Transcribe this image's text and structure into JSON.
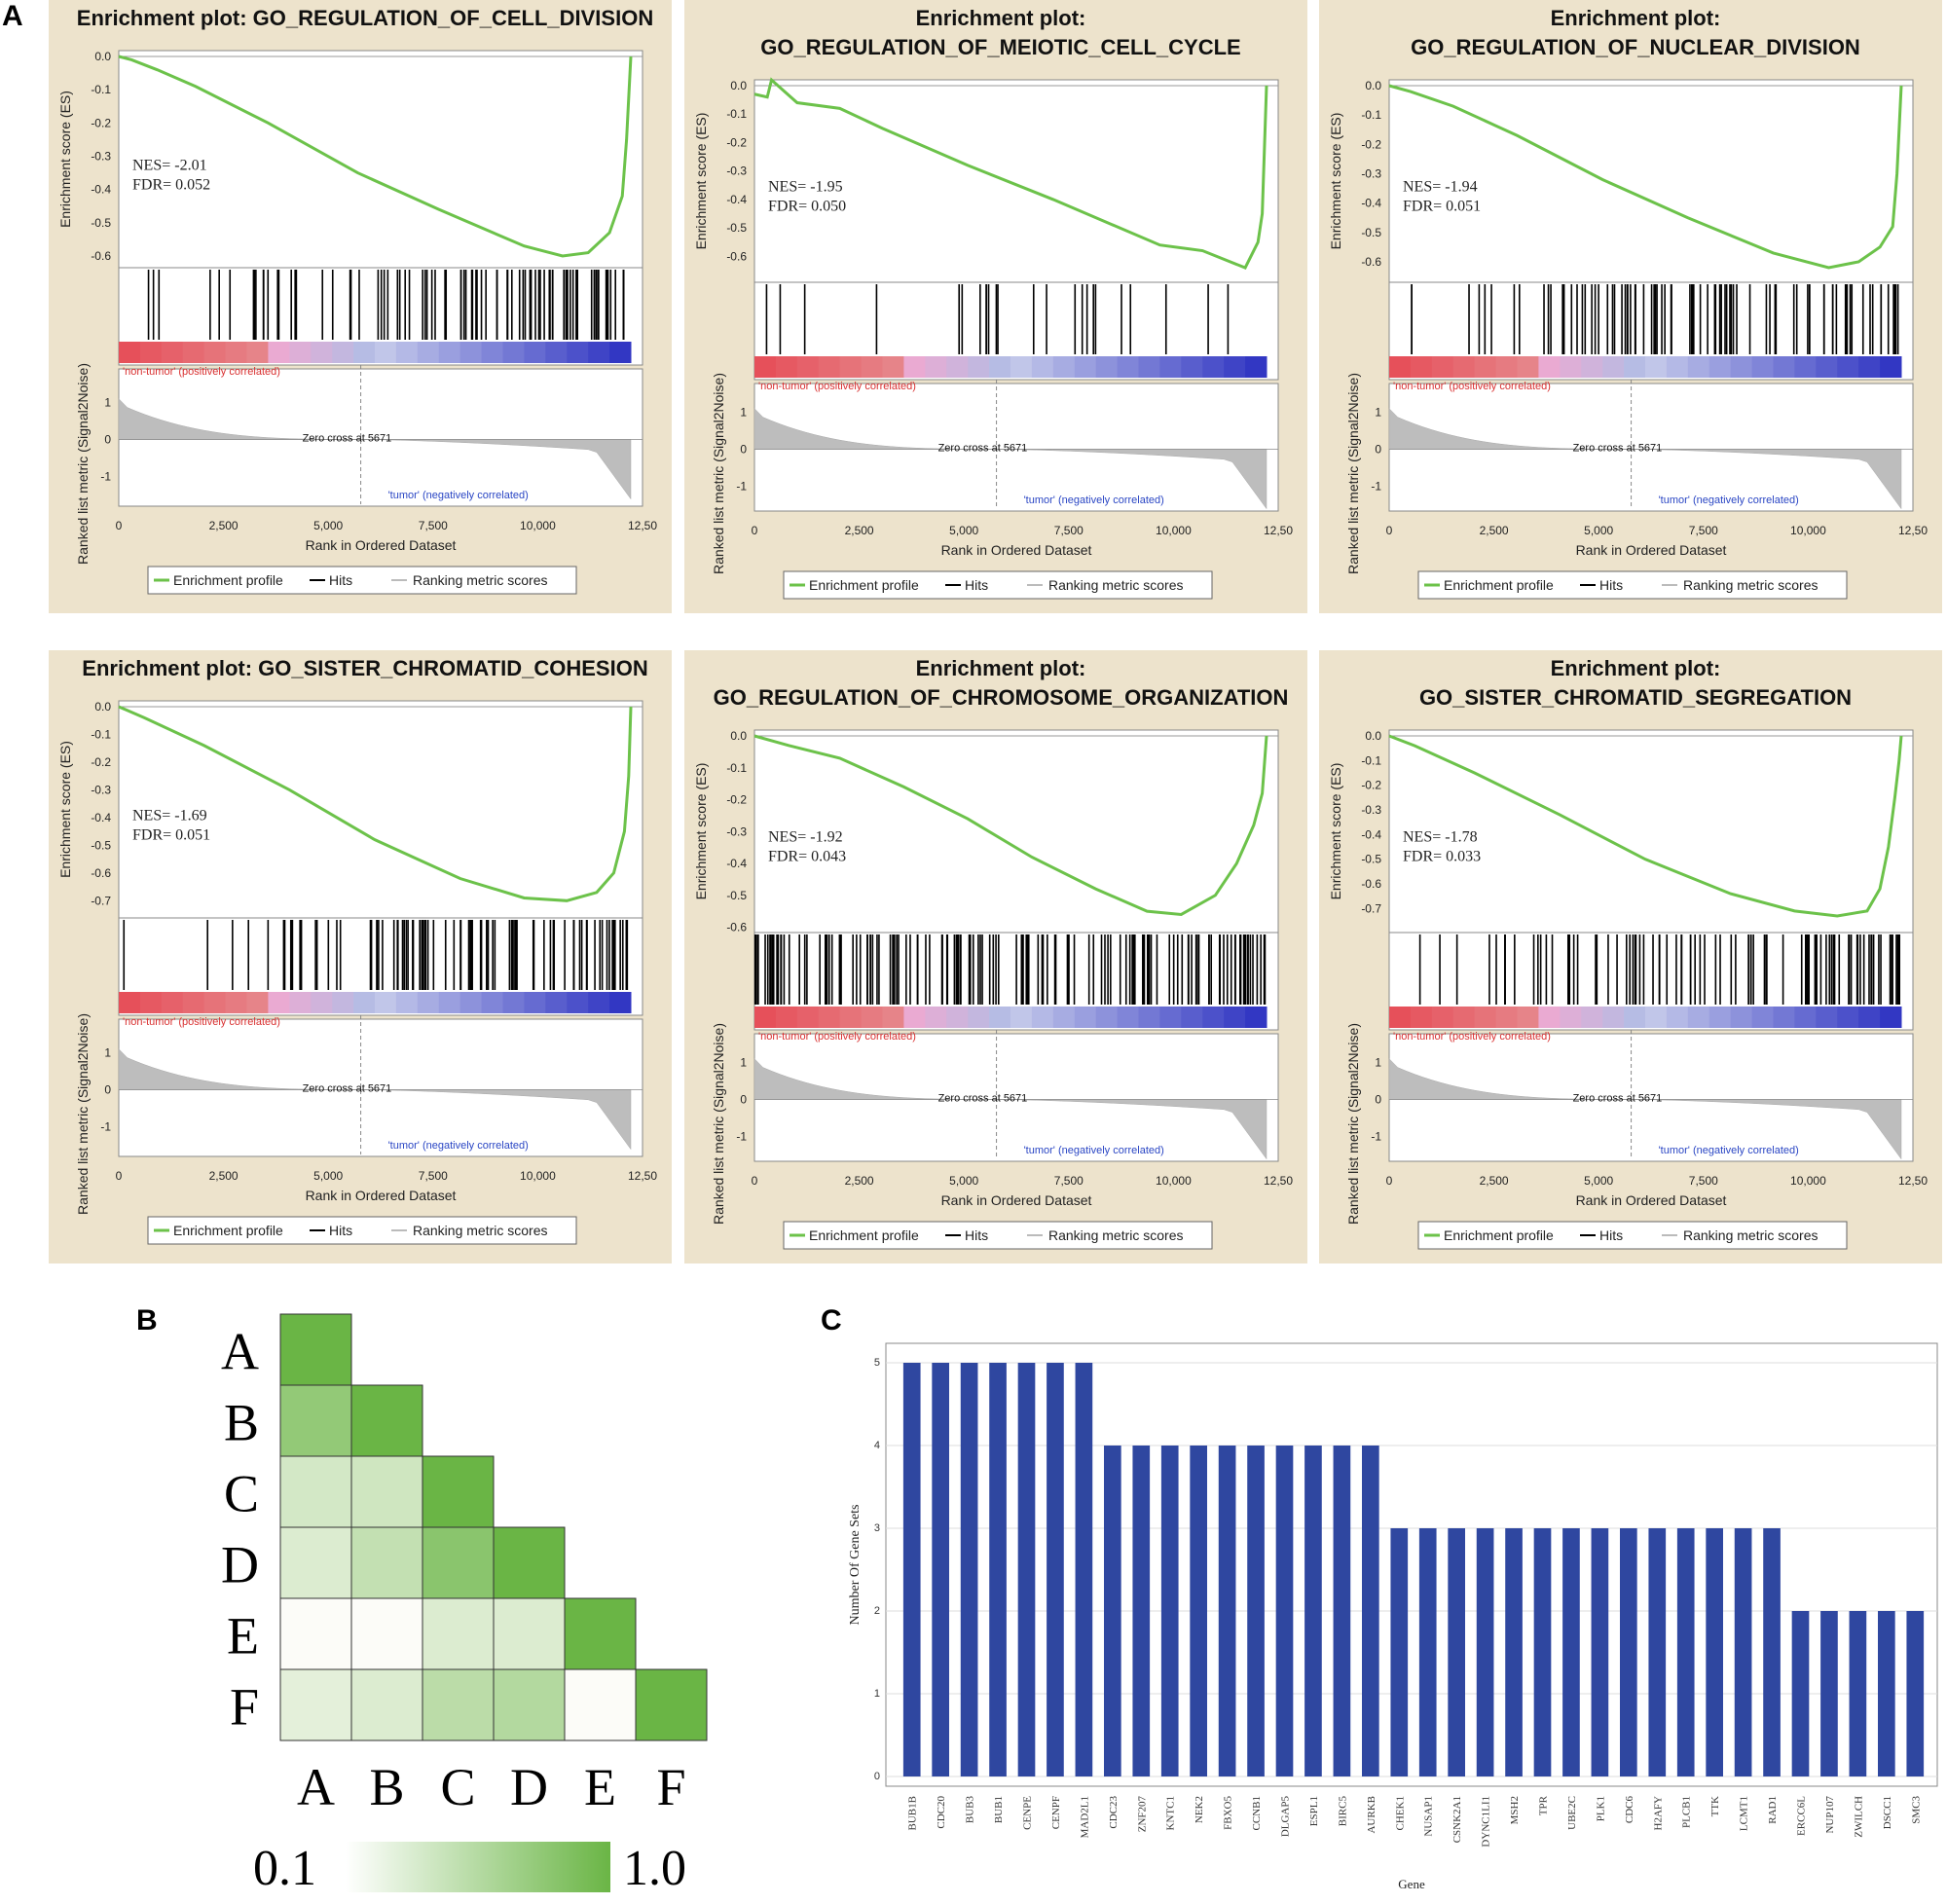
{
  "panel_labels": {
    "a": "A",
    "b": "B",
    "c": "C"
  },
  "colors": {
    "panel_bg": "#ede3cc",
    "enrichment": "#6cc24a",
    "hits": "#000000",
    "metric_fill": "#bdbdbd",
    "pos_label": "#d93030",
    "neg_label": "#2a46c4",
    "heat_max": "#6ab545",
    "heat_min": "#ffffff",
    "bar": "#2f47a0"
  },
  "gsea_common": {
    "es_axis_label": "Enrichment score (ES)",
    "metric_axis_label": "Ranked list metric (Signal2Noise)",
    "x_axis_label": "Rank in Ordered Dataset",
    "pos_label": "'non-tumor' (positively correlated)",
    "neg_label": "'tumor' (negatively correlated)",
    "zero_cross": "Zero cross at 5671",
    "x_ticks": [
      "0",
      "2,500",
      "5,000",
      "7,500",
      "10,000",
      "12,50"
    ],
    "x_tick_values": [
      0,
      2500,
      5000,
      7500,
      10000,
      12500
    ],
    "x_max": 12000,
    "zero_cross_rank": 5671,
    "metric_ticks": [
      "1",
      "0",
      "-1"
    ],
    "legend": [
      "Enrichment profile",
      "Hits",
      "Ranking metric scores"
    ]
  },
  "chart_data": [
    {
      "type": "line",
      "panel": "A1",
      "title_lines": [
        "Enrichment plot: GO_REGULATION_OF_CELL_DIVISION"
      ],
      "nes_text": "NES= -2.01",
      "fdr_text": "FDR= 0.052",
      "nes": -2.01,
      "fdr": 0.052,
      "es_ticks": [
        "0.0",
        "-0.1",
        "-0.2",
        "-0.3",
        "-0.4",
        "-0.5",
        "-0.6"
      ],
      "es_ylim": [
        -0.6,
        0.0
      ],
      "es_x": [
        0,
        300,
        900,
        1800,
        3500,
        5600,
        7500,
        9500,
        10400,
        11000,
        11500,
        11800,
        11900,
        12000
      ],
      "es_y": [
        0.0,
        -0.01,
        -0.04,
        -0.09,
        -0.2,
        -0.35,
        -0.46,
        -0.57,
        -0.6,
        -0.59,
        -0.53,
        -0.42,
        -0.25,
        0.0
      ],
      "hit_density": "mid"
    },
    {
      "type": "line",
      "panel": "A2",
      "title_lines": [
        "Enrichment plot:",
        "GO_REGULATION_OF_MEIOTIC_CELL_CYCLE"
      ],
      "nes_text": "NES= -1.95",
      "fdr_text": "FDR= 0.050",
      "nes": -1.95,
      "fdr": 0.05,
      "es_ticks": [
        "0.0",
        "-0.1",
        "-0.2",
        "-0.3",
        "-0.4",
        "-0.5",
        "-0.6"
      ],
      "es_ylim": [
        -0.65,
        0.0
      ],
      "es_x": [
        0,
        300,
        400,
        1000,
        2000,
        3000,
        5000,
        7000,
        9500,
        10500,
        11500,
        11800,
        11900,
        12000
      ],
      "es_y": [
        -0.03,
        -0.04,
        0.02,
        -0.06,
        -0.08,
        -0.15,
        -0.28,
        -0.4,
        -0.56,
        -0.58,
        -0.64,
        -0.55,
        -0.45,
        0.0
      ],
      "hit_density": "sparse"
    },
    {
      "type": "line",
      "panel": "A3",
      "title_lines": [
        "Enrichment plot:",
        "GO_REGULATION_OF_NUCLEAR_DIVISION"
      ],
      "nes_text": "NES= -1.94",
      "fdr_text": "FDR= 0.051",
      "nes": -1.94,
      "fdr": 0.051,
      "es_ticks": [
        "0.0",
        "-0.1",
        "-0.2",
        "-0.3",
        "-0.4",
        "-0.5",
        "-0.6"
      ],
      "es_ylim": [
        -0.63,
        0.0
      ],
      "es_x": [
        0,
        500,
        1500,
        3000,
        5000,
        7000,
        9000,
        10300,
        11000,
        11500,
        11800,
        11900,
        12000
      ],
      "es_y": [
        0.0,
        -0.02,
        -0.07,
        -0.17,
        -0.32,
        -0.45,
        -0.57,
        -0.62,
        -0.6,
        -0.55,
        -0.48,
        -0.3,
        0.0
      ],
      "hit_density": "mid"
    },
    {
      "type": "line",
      "panel": "A4",
      "title_lines": [
        "Enrichment plot: GO_SISTER_CHROMATID_COHESION"
      ],
      "nes_text": "NES= -1.69",
      "fdr_text": "FDR= 0.051",
      "nes": -1.69,
      "fdr": 0.051,
      "es_ticks": [
        "0.0",
        "-0.1",
        "-0.2",
        "-0.3",
        "-0.4",
        "-0.5",
        "-0.6",
        "-0.7"
      ],
      "es_ylim": [
        -0.72,
        0.0
      ],
      "es_x": [
        0,
        600,
        2000,
        4000,
        6000,
        8000,
        9500,
        10500,
        11200,
        11600,
        11850,
        11950,
        12000
      ],
      "es_y": [
        0.0,
        -0.04,
        -0.14,
        -0.3,
        -0.48,
        -0.62,
        -0.69,
        -0.7,
        -0.67,
        -0.6,
        -0.45,
        -0.25,
        0.0
      ],
      "hit_density": "mid"
    },
    {
      "type": "line",
      "panel": "A5",
      "title_lines": [
        "Enrichment plot:",
        "GO_REGULATION_OF_CHROMOSOME_ORGANIZATION"
      ],
      "nes_text": "NES= -1.92",
      "fdr_text": "FDR= 0.043",
      "nes": -1.92,
      "fdr": 0.043,
      "es_ticks": [
        "0.0",
        "-0.1",
        "-0.2",
        "-0.3",
        "-0.4",
        "-0.5",
        "-0.6"
      ],
      "es_ylim": [
        -0.58,
        0.0
      ],
      "es_x": [
        0,
        800,
        2000,
        3500,
        5000,
        6500,
        8000,
        9200,
        10000,
        10800,
        11300,
        11700,
        11900,
        12000
      ],
      "es_y": [
        0.0,
        -0.03,
        -0.07,
        -0.16,
        -0.26,
        -0.38,
        -0.48,
        -0.55,
        -0.56,
        -0.5,
        -0.4,
        -0.28,
        -0.18,
        0.0
      ],
      "hit_density": "dense"
    },
    {
      "type": "line",
      "panel": "A6",
      "title_lines": [
        "Enrichment plot:",
        "GO_SISTER_CHROMATID_SEGREGATION"
      ],
      "nes_text": "NES= -1.78",
      "fdr_text": "FDR= 0.033",
      "nes": -1.78,
      "fdr": 0.033,
      "es_ticks": [
        "0.0",
        "-0.1",
        "-0.2",
        "-0.3",
        "-0.4",
        "-0.5",
        "-0.6",
        "-0.7"
      ],
      "es_ylim": [
        -0.75,
        0.0
      ],
      "es_x": [
        0,
        600,
        2000,
        4000,
        6000,
        8000,
        9500,
        10500,
        11200,
        11500,
        11700,
        11850,
        11950,
        12000
      ],
      "es_y": [
        0.0,
        -0.04,
        -0.15,
        -0.32,
        -0.5,
        -0.64,
        -0.71,
        -0.73,
        -0.71,
        -0.62,
        -0.45,
        -0.25,
        -0.1,
        0.0
      ],
      "hit_density": "right"
    },
    {
      "type": "heatmap",
      "panel": "B",
      "row_labels": [
        "A",
        "B",
        "C",
        "D",
        "E",
        "F"
      ],
      "col_labels": [
        "A",
        "B",
        "C",
        "D",
        "E",
        "F"
      ],
      "values": [
        [
          1.0
        ],
        [
          0.75,
          1.0
        ],
        [
          0.35,
          0.38,
          1.0
        ],
        [
          0.3,
          0.45,
          0.8,
          1.0
        ],
        [
          0.1,
          0.1,
          0.3,
          0.3,
          1.0
        ],
        [
          0.25,
          0.3,
          0.5,
          0.55,
          0.1,
          1.0
        ]
      ],
      "scale_min_label": "0.1",
      "scale_max_label": "1.0",
      "scale": [
        0.1,
        1.0
      ]
    },
    {
      "type": "bar",
      "panel": "C",
      "xlabel": "Gene",
      "ylabel": "Number Of Gene Sets",
      "ylim": [
        0,
        5
      ],
      "y_ticks": [
        "0",
        "1",
        "2",
        "3",
        "4",
        "5"
      ],
      "categories": [
        "BUB1B",
        "CDC20",
        "BUB3",
        "BUB1",
        "CENPE",
        "CENPF",
        "MAD2L1",
        "CDC23",
        "ZNF207",
        "KNTC1",
        "NEK2",
        "FBXO5",
        "CCNB1",
        "DLGAP5",
        "ESPL1",
        "BIRC5",
        "AURKB",
        "CHEK1",
        "NUSAP1",
        "CSNK2A1",
        "DYNC1LI1",
        "MSH2",
        "TPR",
        "UBE2C",
        "PLK1",
        "CDC6",
        "H2AFY",
        "PLCB1",
        "TTK",
        "LCMT1",
        "RAD1",
        "ERCC6L",
        "NUP107",
        "ZWILCH",
        "DSCC1",
        "SMC3"
      ],
      "values": [
        5,
        5,
        5,
        5,
        5,
        5,
        5,
        4,
        4,
        4,
        4,
        4,
        4,
        4,
        4,
        4,
        4,
        3,
        3,
        3,
        3,
        3,
        3,
        3,
        3,
        3,
        3,
        3,
        3,
        3,
        3,
        2,
        2,
        2,
        2,
        2
      ]
    }
  ]
}
